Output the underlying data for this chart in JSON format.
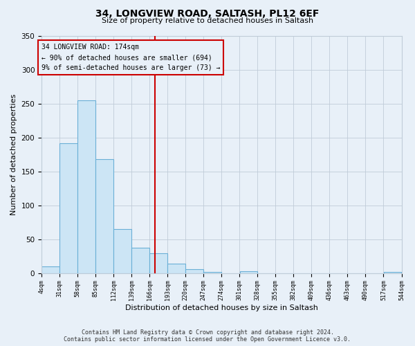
{
  "title": "34, LONGVIEW ROAD, SALTASH, PL12 6EF",
  "subtitle": "Size of property relative to detached houses in Saltash",
  "xlabel": "Distribution of detached houses by size in Saltash",
  "ylabel": "Number of detached properties",
  "bin_edges": [
    4,
    31,
    58,
    85,
    112,
    139,
    166,
    193,
    220,
    247,
    274,
    301,
    328,
    355,
    382,
    409,
    436,
    463,
    490,
    517,
    544
  ],
  "bar_heights": [
    10,
    191,
    255,
    168,
    65,
    37,
    29,
    14,
    6,
    2,
    0,
    3,
    0,
    0,
    0,
    0,
    0,
    0,
    0,
    2
  ],
  "bar_facecolor": "#cce5f5",
  "bar_edgecolor": "#6aafd6",
  "property_line_x": 174,
  "property_line_color": "#cc0000",
  "annotation_title": "34 LONGVIEW ROAD: 174sqm",
  "annotation_line1": "← 90% of detached houses are smaller (694)",
  "annotation_line2": "9% of semi-detached houses are larger (73) →",
  "annotation_box_color": "#cc0000",
  "ylim": [
    0,
    350
  ],
  "xlim": [
    4,
    544
  ],
  "tick_labels": [
    "4sqm",
    "31sqm",
    "58sqm",
    "85sqm",
    "112sqm",
    "139sqm",
    "166sqm",
    "193sqm",
    "220sqm",
    "247sqm",
    "274sqm",
    "301sqm",
    "328sqm",
    "355sqm",
    "382sqm",
    "409sqm",
    "436sqm",
    "463sqm",
    "490sqm",
    "517sqm",
    "544sqm"
  ],
  "footer_line1": "Contains HM Land Registry data © Crown copyright and database right 2024.",
  "footer_line2": "Contains public sector information licensed under the Open Government Licence v3.0.",
  "bg_color": "#e8f0f8",
  "plot_bg_color": "#e8f0f8",
  "grid_color": "#c0ccd8"
}
